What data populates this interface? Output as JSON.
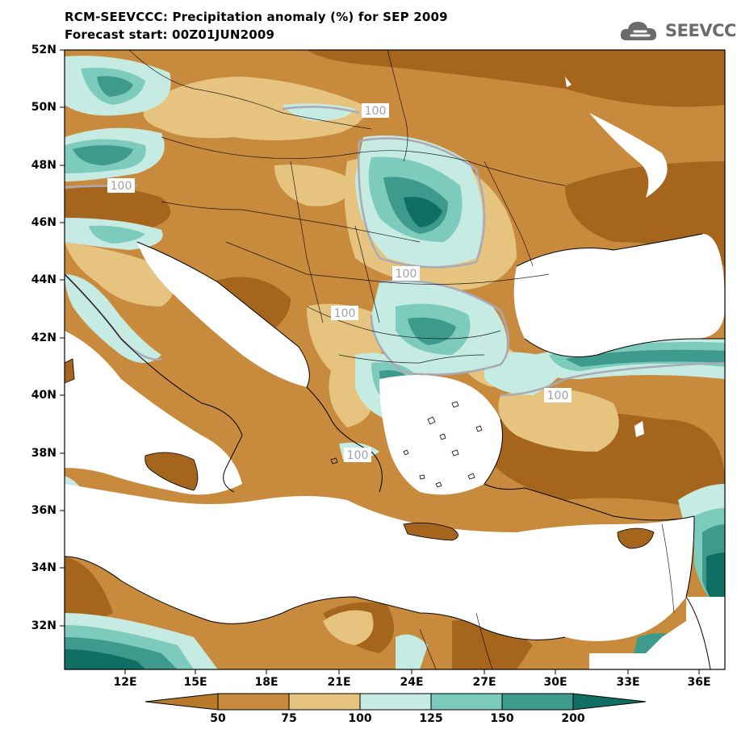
{
  "title_line1": "RCM-SEEVCCC: Precipitation anomaly (%) for SEP 2009",
  "title_line2": "Forecast start: 00Z01JUN2009",
  "logo_text": "SEEVCCC",
  "lat_labels": [
    "52N",
    "50N",
    "48N",
    "46N",
    "44N",
    "42N",
    "40N",
    "38N",
    "36N",
    "34N",
    "32N"
  ],
  "lon_labels": [
    "12E",
    "15E",
    "18E",
    "21E",
    "24E",
    "27E",
    "30E",
    "33E",
    "36E"
  ],
  "contour_labels": [
    "100",
    "100",
    "100",
    "100",
    "100",
    "100"
  ],
  "colorbar": {
    "ticks": [
      "50",
      "75",
      "100",
      "125",
      "150",
      "200"
    ],
    "colors": [
      "#b87a2a",
      "#c88a3c",
      "#e6c480",
      "#c6ebe3",
      "#7ccbbd",
      "#3e9a8c",
      "#0f6f62"
    ]
  },
  "palette": {
    "dark_brown": "#a6651d",
    "brown": "#c88a3c",
    "tan": "#e6c480",
    "light_teal": "#c6ebe3",
    "teal": "#7ccbbd",
    "dark_teal": "#3e9a8c",
    "deepest_teal": "#0f6f62",
    "contour_100": "#a9a9b8"
  }
}
